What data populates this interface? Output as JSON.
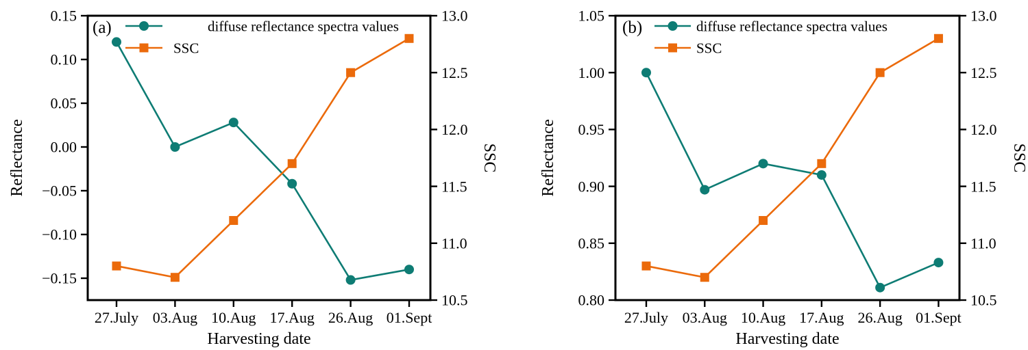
{
  "figure": {
    "background": "#ffffff",
    "text_color": "#000000",
    "series_colors": {
      "reflectance": "#0E7C74",
      "ssc": "#EB6A0B"
    }
  },
  "chart_data": [
    {
      "type": "line",
      "panel_label": "(a)",
      "xlabel": "Harvesting date",
      "ylabel_left": "Reflectance",
      "ylabel_right": "SSC",
      "categories": [
        "27.July",
        "03.Aug",
        "10.Aug",
        "17.Aug",
        "26.Aug",
        "01.Sept"
      ],
      "series": [
        {
          "name": "diffuse reflectance spectra values",
          "axis": "left",
          "marker": "circle",
          "color": "#0E7C74",
          "values": [
            0.12,
            0.0,
            0.028,
            -0.042,
            -0.152,
            -0.14
          ]
        },
        {
          "name": "SSC",
          "axis": "right",
          "marker": "square",
          "color": "#EB6A0B",
          "values": [
            10.8,
            10.7,
            11.2,
            11.7,
            12.5,
            12.8
          ]
        }
      ],
      "ylim_left": [
        -0.175,
        0.15
      ],
      "ylim_right": [
        10.5,
        13.0
      ],
      "yticks_left": [
        0.15,
        0.1,
        0.05,
        0.0,
        -0.05,
        -0.1,
        -0.15
      ],
      "yticks_right": [
        13.0,
        12.5,
        12.0,
        11.5,
        11.0,
        10.5
      ],
      "legend_position": "top-left",
      "grid": false
    },
    {
      "type": "line",
      "panel_label": "(b)",
      "xlabel": "Harvesting date",
      "ylabel_left": "Reflectance",
      "ylabel_right": "SSC",
      "categories": [
        "27.July",
        "03.Aug",
        "10.Aug",
        "17.Aug",
        "26.Aug",
        "01.Sept"
      ],
      "series": [
        {
          "name": "diffuse reflectance spectra values",
          "axis": "left",
          "marker": "circle",
          "color": "#0E7C74",
          "values": [
            1.0,
            0.897,
            0.92,
            0.91,
            0.811,
            0.833
          ]
        },
        {
          "name": "SSC",
          "axis": "right",
          "marker": "square",
          "color": "#EB6A0B",
          "values": [
            10.8,
            10.7,
            11.2,
            11.7,
            12.5,
            12.8
          ]
        }
      ],
      "ylim_left": [
        0.8,
        1.05
      ],
      "ylim_right": [
        10.5,
        13.0
      ],
      "yticks_left": [
        1.05,
        1.0,
        0.95,
        0.9,
        0.85,
        0.8
      ],
      "yticks_right": [
        13.0,
        12.5,
        12.0,
        11.5,
        11.0,
        10.5
      ],
      "legend_position": "top-left",
      "grid": false
    }
  ]
}
